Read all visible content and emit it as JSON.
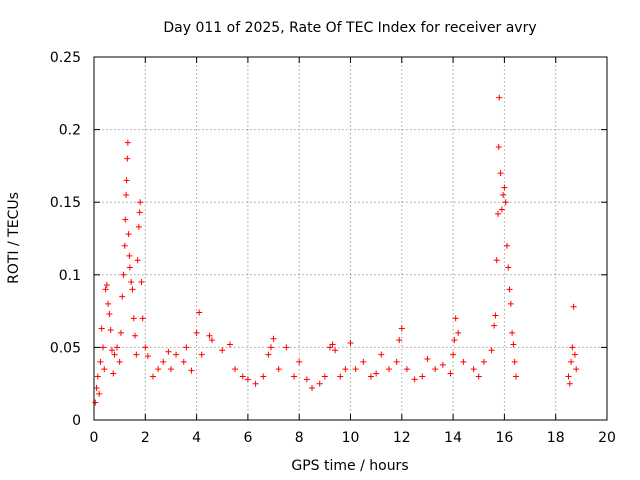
{
  "chart_data": {
    "type": "scatter",
    "title": "Day 011 of 2025, Rate Of TEC Index for receiver avry",
    "xlabel": "GPS time / hours",
    "ylabel": "ROTI / TECUs",
    "xlim": [
      0,
      20
    ],
    "ylim": [
      0,
      0.25
    ],
    "xticks": [
      "0",
      "2",
      "4",
      "6",
      "8",
      "10",
      "12",
      "14",
      "16",
      "18",
      "20"
    ],
    "yticks": [
      "0",
      "0.05",
      "0.1",
      "0.15",
      "0.2",
      "0.25"
    ],
    "grid": true,
    "marker": "plus",
    "color": "#ff0000",
    "series": [
      {
        "name": "ROTI",
        "points": [
          [
            0.05,
            0.012
          ],
          [
            0.1,
            0.022
          ],
          [
            0.15,
            0.03
          ],
          [
            0.2,
            0.018
          ],
          [
            0.25,
            0.04
          ],
          [
            0.3,
            0.063
          ],
          [
            0.35,
            0.05
          ],
          [
            0.4,
            0.035
          ],
          [
            0.45,
            0.09
          ],
          [
            0.5,
            0.093
          ],
          [
            0.55,
            0.08
          ],
          [
            0.6,
            0.073
          ],
          [
            0.65,
            0.062
          ],
          [
            0.7,
            0.048
          ],
          [
            0.75,
            0.032
          ],
          [
            0.8,
            0.045
          ],
          [
            0.9,
            0.05
          ],
          [
            1.0,
            0.04
          ],
          [
            1.05,
            0.06
          ],
          [
            1.1,
            0.085
          ],
          [
            1.15,
            0.1
          ],
          [
            1.2,
            0.12
          ],
          [
            1.22,
            0.138
          ],
          [
            1.25,
            0.155
          ],
          [
            1.27,
            0.165
          ],
          [
            1.3,
            0.18
          ],
          [
            1.32,
            0.191
          ],
          [
            1.35,
            0.128
          ],
          [
            1.38,
            0.113
          ],
          [
            1.4,
            0.105
          ],
          [
            1.45,
            0.095
          ],
          [
            1.5,
            0.09
          ],
          [
            1.55,
            0.07
          ],
          [
            1.6,
            0.058
          ],
          [
            1.65,
            0.045
          ],
          [
            1.7,
            0.11
          ],
          [
            1.75,
            0.133
          ],
          [
            1.78,
            0.143
          ],
          [
            1.8,
            0.15
          ],
          [
            1.85,
            0.095
          ],
          [
            1.9,
            0.07
          ],
          [
            2.0,
            0.05
          ],
          [
            2.1,
            0.044
          ],
          [
            2.3,
            0.03
          ],
          [
            2.5,
            0.035
          ],
          [
            2.7,
            0.04
          ],
          [
            2.9,
            0.047
          ],
          [
            3.0,
            0.035
          ],
          [
            3.2,
            0.045
          ],
          [
            3.5,
            0.04
          ],
          [
            3.6,
            0.05
          ],
          [
            3.8,
            0.034
          ],
          [
            4.0,
            0.06
          ],
          [
            4.1,
            0.074
          ],
          [
            4.2,
            0.045
          ],
          [
            4.5,
            0.058
          ],
          [
            4.6,
            0.055
          ],
          [
            5.0,
            0.048
          ],
          [
            5.3,
            0.052
          ],
          [
            5.5,
            0.035
          ],
          [
            5.8,
            0.03
          ],
          [
            6.0,
            0.028
          ],
          [
            6.3,
            0.025
          ],
          [
            6.6,
            0.03
          ],
          [
            6.8,
            0.045
          ],
          [
            6.9,
            0.05
          ],
          [
            7.0,
            0.056
          ],
          [
            7.2,
            0.035
          ],
          [
            7.5,
            0.05
          ],
          [
            7.8,
            0.03
          ],
          [
            8.0,
            0.04
          ],
          [
            8.3,
            0.028
          ],
          [
            8.5,
            0.022
          ],
          [
            8.8,
            0.025
          ],
          [
            9.0,
            0.03
          ],
          [
            9.2,
            0.05
          ],
          [
            9.3,
            0.052
          ],
          [
            9.4,
            0.048
          ],
          [
            9.6,
            0.03
          ],
          [
            9.8,
            0.035
          ],
          [
            10.0,
            0.053
          ],
          [
            10.2,
            0.035
          ],
          [
            10.5,
            0.04
          ],
          [
            10.8,
            0.03
          ],
          [
            11.0,
            0.032
          ],
          [
            11.2,
            0.045
          ],
          [
            11.5,
            0.035
          ],
          [
            11.8,
            0.04
          ],
          [
            11.9,
            0.055
          ],
          [
            12.0,
            0.063
          ],
          [
            12.2,
            0.035
          ],
          [
            12.5,
            0.028
          ],
          [
            12.8,
            0.03
          ],
          [
            13.0,
            0.042
          ],
          [
            13.3,
            0.035
          ],
          [
            13.6,
            0.038
          ],
          [
            13.9,
            0.032
          ],
          [
            14.0,
            0.045
          ],
          [
            14.05,
            0.055
          ],
          [
            14.1,
            0.07
          ],
          [
            14.2,
            0.06
          ],
          [
            14.4,
            0.04
          ],
          [
            14.8,
            0.035
          ],
          [
            15.0,
            0.03
          ],
          [
            15.2,
            0.04
          ],
          [
            15.5,
            0.048
          ],
          [
            15.6,
            0.065
          ],
          [
            15.65,
            0.072
          ],
          [
            15.7,
            0.11
          ],
          [
            15.75,
            0.142
          ],
          [
            15.78,
            0.188
          ],
          [
            15.8,
            0.222
          ],
          [
            15.85,
            0.17
          ],
          [
            15.9,
            0.145
          ],
          [
            15.95,
            0.155
          ],
          [
            16.0,
            0.16
          ],
          [
            16.05,
            0.15
          ],
          [
            16.1,
            0.12
          ],
          [
            16.15,
            0.105
          ],
          [
            16.2,
            0.09
          ],
          [
            16.25,
            0.08
          ],
          [
            16.3,
            0.06
          ],
          [
            16.35,
            0.052
          ],
          [
            16.4,
            0.04
          ],
          [
            16.45,
            0.03
          ],
          [
            18.5,
            0.03
          ],
          [
            18.55,
            0.025
          ],
          [
            18.6,
            0.04
          ],
          [
            18.65,
            0.05
          ],
          [
            18.7,
            0.078
          ],
          [
            18.75,
            0.045
          ],
          [
            18.8,
            0.035
          ]
        ]
      }
    ]
  }
}
